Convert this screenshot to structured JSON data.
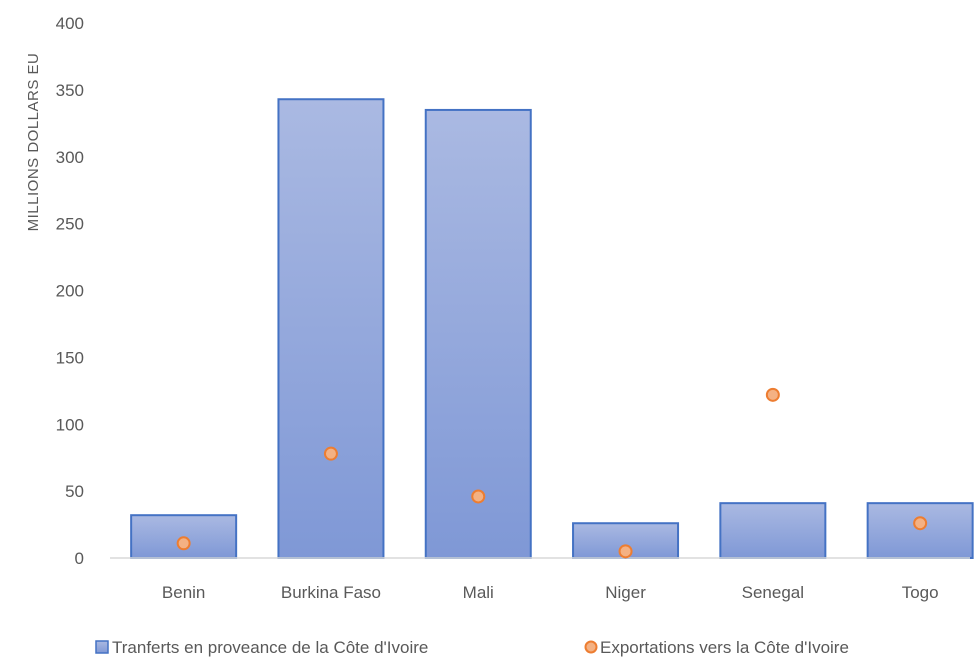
{
  "chart_data": {
    "type": "bar",
    "ylabel": "MILLIONS DOLLARS EU",
    "ylim": [
      0,
      400
    ],
    "yticks": [
      "0",
      "50",
      "100",
      "150",
      "200",
      "250",
      "300",
      "350",
      "400"
    ],
    "categories": [
      "Benin",
      "Burkina Faso",
      "Mali",
      "Niger",
      "Senegal",
      "Togo"
    ],
    "series": [
      {
        "name": "Tranferts en proveance de la Côte d'Ivoire",
        "kind": "bar",
        "color": "#8faadc",
        "values": [
          32,
          343,
          335,
          26,
          41,
          41
        ]
      },
      {
        "name": "Exportations vers la Côte d'Ivoire",
        "kind": "scatter",
        "color": "#f4b183",
        "values": [
          11,
          78,
          46,
          5,
          122,
          26
        ]
      }
    ],
    "grid": false,
    "legend": "bottom"
  }
}
